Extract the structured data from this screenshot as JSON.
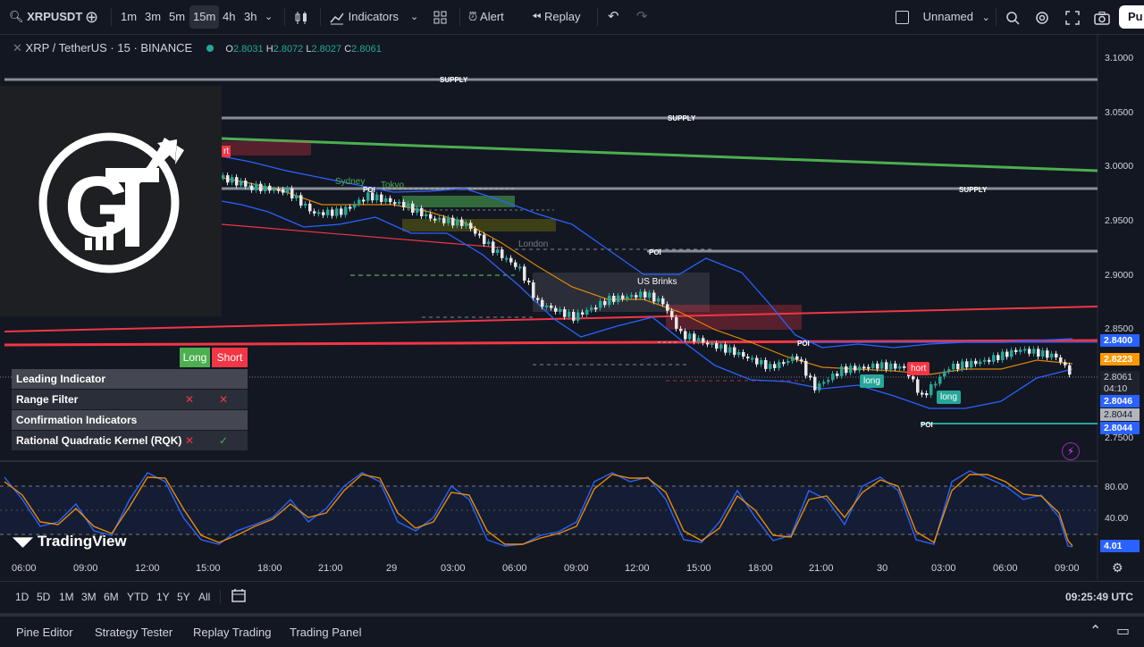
{
  "toolbar": {
    "symbol": "XRPUSDT",
    "intervals": [
      "1m",
      "3m",
      "5m",
      "15m",
      "4h",
      "3h"
    ],
    "active_interval": "15m",
    "indicators_label": "Indicators",
    "alert_label": "Alert",
    "replay_label": "Replay",
    "layout_name": "Unnamed",
    "publish_label": "Pu"
  },
  "legend": {
    "title": "XRP / TetherUS · 15 · BINANCE",
    "open_key": "O",
    "open": "2.8031",
    "high_key": "H",
    "high": "2.8072",
    "low_key": "L",
    "low": "2.8027",
    "close_key": "C",
    "close": "2.8061"
  },
  "price_axis": [
    "3.1000",
    "3.0500",
    "3.0000",
    "2.9500",
    "2.9000",
    "2.8500",
    "2.7500"
  ],
  "price_tags": {
    "blue_top": "2.8400",
    "orange": "2.8223",
    "current": "2.8061",
    "countdown": "04:10",
    "blue_mid": "2.8046",
    "gray": "2.8044",
    "blue_bottom": "2.8044"
  },
  "oscillator_axis": [
    "80.00",
    "40.00"
  ],
  "oscillator_value": "4.01",
  "time_axis": [
    "06:00",
    "09:00",
    "12:00",
    "15:00",
    "18:00",
    "21:00",
    "29",
    "03:00",
    "06:00",
    "09:00",
    "12:00",
    "15:00",
    "18:00",
    "21:00",
    "30",
    "03:00",
    "06:00",
    "09:00"
  ],
  "chart_labels": {
    "supply": "SUPPLY",
    "poi": "POI",
    "sydney": "Sydney",
    "tokyo": "Tokyo",
    "london": "London",
    "us_brinks": "US Brinks",
    "long": "long",
    "short_partial": "hort",
    "short_partial_left": "rt"
  },
  "indicator_table": {
    "long_header": "Long",
    "short_header": "Short",
    "rows": [
      {
        "label": "Leading Indicator",
        "long": "",
        "short": ""
      },
      {
        "label": "Range Filter",
        "long": "✕",
        "short": "✕"
      },
      {
        "label": "Confirmation Indicators",
        "long": "",
        "short": ""
      },
      {
        "label": "Rational Quadratic Kernel (RQK)",
        "long": "✕",
        "short": "✓"
      }
    ]
  },
  "watermark": "TradingView",
  "ranges": [
    "1D",
    "5D",
    "1M",
    "3M",
    "6M",
    "YTD",
    "1Y",
    "5Y",
    "All"
  ],
  "clock": "09:25:49 UTC",
  "footer_tabs": [
    "Pine Editor",
    "Strategy Tester",
    "Replay Trading",
    "Trading Panel"
  ],
  "colors": {
    "background": "#131722",
    "up": "#26a69a",
    "down": "#ef5350",
    "magenta": "#e91e63",
    "supply_line": "#b2b5be",
    "green_trend": "#4caf50",
    "red_line": "#f23645",
    "bb": "#2962ff",
    "basis": "#ff9800"
  }
}
